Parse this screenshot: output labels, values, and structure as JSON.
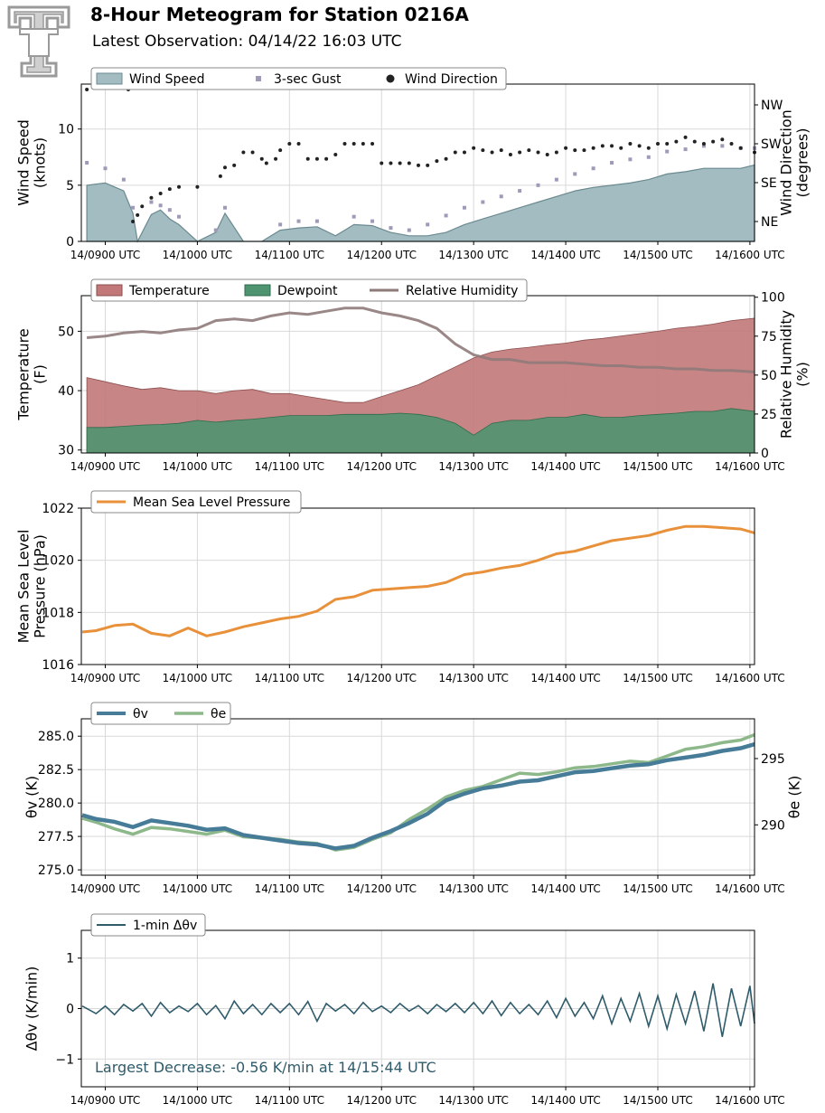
{
  "header": {
    "title": "8-Hour Meteogram for Station 0216A",
    "subtitle": "Latest Observation: 04/14/22 16:03 UTC"
  },
  "x_ticks": [
    "14/0900 UTC",
    "14/1000 UTC",
    "14/1100 UTC",
    "14/1200 UTC",
    "14/1300 UTC",
    "14/1400 UTC",
    "14/1500 UTC",
    "14/1600 UTC"
  ],
  "colors": {
    "wind_speed": "#a3bcc1",
    "wind_speed_edge": "#6b8a90",
    "gust": "#a09ab8",
    "direction": "#222222",
    "temperature": "#c27878",
    "dewpoint": "#4e9470",
    "rh": "#8f7a7a",
    "pressure": "#e8913a",
    "theta_v": "#477c98",
    "theta_e": "#8db88a",
    "delta": "#2f5b6a"
  },
  "chart_data": [
    {
      "type": "area",
      "panel": "wind",
      "ylabel": [
        "Wind Speed",
        "(knots)"
      ],
      "y2label": [
        "Wind Direction",
        "(degrees)"
      ],
      "yticks": [
        "0",
        "5",
        "10"
      ],
      "y2ticks": [
        "NE",
        "SE",
        "SW",
        "NW"
      ],
      "ylim": [
        0,
        14
      ],
      "legend": [
        "Wind Speed",
        "3-sec Gust",
        "Wind Direction"
      ],
      "series": [
        {
          "name": "Wind Speed",
          "unit": "knots",
          "x": [
            8.8,
            9.0,
            9.2,
            9.3,
            9.35,
            9.5,
            9.6,
            9.7,
            9.8,
            10.0,
            10.2,
            10.3,
            10.5,
            10.7,
            10.9,
            11.1,
            11.3,
            11.5,
            11.7,
            11.9,
            12.1,
            12.3,
            12.5,
            12.7,
            12.9,
            13.1,
            13.3,
            13.5,
            13.7,
            13.9,
            14.1,
            14.3,
            14.5,
            14.7,
            14.9,
            15.1,
            15.3,
            15.5,
            15.7,
            15.9,
            16.05
          ],
          "values": [
            5,
            5.2,
            4.5,
            2.5,
            0,
            2.4,
            2.8,
            2.0,
            1.5,
            0,
            0.8,
            2.5,
            0,
            0,
            1,
            1.2,
            1.3,
            0.5,
            1.5,
            1.4,
            0.8,
            0.5,
            0.5,
            0.8,
            1.5,
            2,
            2.5,
            3,
            3.5,
            4,
            4.5,
            4.8,
            5,
            5.2,
            5.5,
            6,
            6.2,
            6.5,
            6.5,
            6.5,
            6.8
          ]
        },
        {
          "name": "3-sec Gust",
          "unit": "knots",
          "x": [
            8.8,
            9.0,
            9.2,
            9.3,
            9.5,
            9.6,
            9.7,
            9.8,
            10.2,
            10.3,
            10.9,
            11.1,
            11.3,
            11.7,
            11.9,
            12.1,
            12.3,
            12.5,
            12.7,
            12.9,
            13.1,
            13.3,
            13.5,
            13.7,
            13.9,
            14.1,
            14.3,
            14.5,
            14.7,
            14.9,
            15.1,
            15.3,
            15.5,
            15.7,
            15.9,
            16.05
          ],
          "values": [
            7,
            6.5,
            5.5,
            3,
            3.5,
            3.2,
            2.8,
            2.2,
            1,
            3,
            1.5,
            1.8,
            1.8,
            2.2,
            1.8,
            1.2,
            1,
            1.5,
            2.3,
            3,
            3.5,
            4,
            4.5,
            5,
            5.5,
            6,
            6.5,
            7,
            7.3,
            7.5,
            8,
            8.2,
            8.5,
            8.5,
            8.3,
            8.3
          ]
        },
        {
          "name": "Wind Direction",
          "unit": "degrees",
          "x": [
            8.8,
            9.25,
            9.3,
            9.35,
            9.4,
            9.5,
            9.6,
            9.7,
            9.8,
            10.0,
            10.25,
            10.3,
            10.4,
            10.5,
            10.6,
            10.7,
            10.75,
            10.85,
            10.9,
            11.0,
            11.1,
            11.2,
            11.3,
            11.4,
            11.5,
            11.6,
            11.7,
            11.8,
            11.9,
            12.0,
            12.1,
            12.2,
            12.3,
            12.4,
            12.5,
            12.6,
            12.7,
            12.8,
            12.9,
            13.0,
            13.1,
            13.2,
            13.3,
            13.4,
            13.5,
            13.6,
            13.7,
            13.8,
            13.9,
            14.0,
            14.1,
            14.2,
            14.3,
            14.4,
            14.5,
            14.6,
            14.7,
            14.8,
            14.9,
            15.0,
            15.1,
            15.2,
            15.3,
            15.4,
            15.5,
            15.6,
            15.7,
            15.8,
            15.9,
            16.05
          ],
          "values": [
            360,
            360,
            45,
            60,
            80,
            100,
            110,
            120,
            125,
            125,
            150,
            170,
            175,
            205,
            205,
            190,
            180,
            190,
            210,
            225,
            225,
            190,
            190,
            190,
            200,
            225,
            225,
            225,
            225,
            180,
            180,
            180,
            180,
            175,
            175,
            185,
            190,
            205,
            205,
            215,
            210,
            205,
            210,
            200,
            205,
            210,
            205,
            200,
            205,
            215,
            210,
            210,
            215,
            220,
            220,
            215,
            225,
            220,
            215,
            225,
            225,
            230,
            240,
            230,
            225,
            230,
            235,
            225,
            215,
            205
          ]
        }
      ]
    },
    {
      "type": "area",
      "panel": "temperature",
      "ylabel": [
        "Temperature",
        "(F)"
      ],
      "y2label": [
        "Relative Humidity",
        "(%)"
      ],
      "yticks": [
        "30",
        "40",
        "50"
      ],
      "y2ticks": [
        "0",
        "25",
        "50",
        "75",
        "100"
      ],
      "ylim": [
        29.5,
        56
      ],
      "y2lim": [
        0,
        101
      ],
      "legend": [
        "Temperature",
        "Dewpoint",
        "Relative Humidity"
      ],
      "x": [
        8.8,
        9.0,
        9.2,
        9.4,
        9.6,
        9.8,
        10.0,
        10.2,
        10.4,
        10.6,
        10.8,
        11.0,
        11.2,
        11.4,
        11.6,
        11.8,
        12.0,
        12.2,
        12.4,
        12.6,
        12.8,
        13.0,
        13.2,
        13.4,
        13.6,
        13.8,
        14.0,
        14.2,
        14.4,
        14.6,
        14.8,
        15.0,
        15.2,
        15.4,
        15.6,
        15.8,
        16.05
      ],
      "series": [
        {
          "name": "Temperature",
          "unit": "F",
          "values": [
            42.2,
            41.5,
            40.8,
            40.2,
            40.5,
            40.0,
            40.0,
            39.5,
            40.0,
            40.2,
            39.5,
            39.5,
            39.0,
            38.5,
            38.0,
            38.0,
            39.0,
            40.0,
            41.0,
            42.5,
            44.0,
            45.5,
            46.5,
            47.0,
            47.3,
            47.7,
            48.0,
            48.5,
            48.8,
            49.2,
            49.6,
            50.0,
            50.5,
            50.8,
            51.2,
            51.8,
            52.2
          ]
        },
        {
          "name": "Dewpoint",
          "unit": "F",
          "values": [
            33.8,
            33.8,
            34.0,
            34.2,
            34.3,
            34.5,
            35.0,
            34.7,
            35.0,
            35.2,
            35.5,
            35.8,
            35.8,
            35.8,
            36.0,
            36.0,
            36.0,
            36.2,
            36.0,
            35.5,
            34.5,
            32.5,
            34.5,
            35.0,
            35.0,
            35.5,
            35.5,
            36.0,
            35.5,
            35.5,
            35.8,
            36.0,
            36.2,
            36.5,
            36.5,
            37.0,
            36.5
          ]
        },
        {
          "name": "Relative Humidity",
          "unit": "%",
          "values": [
            74,
            75,
            77,
            78,
            77,
            79,
            80,
            85,
            86,
            85,
            88,
            90,
            89,
            91,
            93,
            93,
            90,
            88,
            85,
            80,
            70,
            63,
            60,
            60,
            58,
            58,
            58,
            57,
            56,
            56,
            55,
            55,
            54,
            54,
            53,
            53,
            52
          ]
        }
      ]
    },
    {
      "type": "line",
      "panel": "pressure",
      "ylabel": [
        "Mean Sea Level",
        "Pressure (hPa)"
      ],
      "yticks": [
        "1016",
        "1018",
        "1020",
        "1022"
      ],
      "ylim": [
        1016,
        1022
      ],
      "legend": [
        "Mean Sea Level Pressure"
      ],
      "series": [
        {
          "name": "Mean Sea Level Pressure",
          "unit": "hPa",
          "x": [
            8.75,
            8.9,
            9.1,
            9.3,
            9.5,
            9.7,
            9.9,
            10.1,
            10.3,
            10.5,
            10.7,
            10.9,
            11.1,
            11.3,
            11.5,
            11.7,
            11.9,
            12.1,
            12.3,
            12.5,
            12.7,
            12.9,
            13.1,
            13.3,
            13.5,
            13.7,
            13.9,
            14.1,
            14.3,
            14.5,
            14.7,
            14.9,
            15.1,
            15.3,
            15.5,
            15.7,
            15.9,
            16.05
          ],
          "values": [
            1017.25,
            1017.3,
            1017.5,
            1017.55,
            1017.2,
            1017.1,
            1017.4,
            1017.1,
            1017.25,
            1017.45,
            1017.6,
            1017.75,
            1017.85,
            1018.05,
            1018.5,
            1018.6,
            1018.85,
            1018.9,
            1018.95,
            1019.0,
            1019.15,
            1019.45,
            1019.55,
            1019.7,
            1019.8,
            1020.0,
            1020.25,
            1020.35,
            1020.55,
            1020.75,
            1020.85,
            1020.95,
            1021.15,
            1021.3,
            1021.3,
            1021.25,
            1021.2,
            1021.05
          ]
        }
      ]
    },
    {
      "type": "line",
      "panel": "theta",
      "ylabel": [
        "θv (K)"
      ],
      "y2label": [
        "θe (K)"
      ],
      "yticks": [
        "275.0",
        "277.5",
        "280.0",
        "282.5",
        "285.0"
      ],
      "y2ticks": [
        "290",
        "295"
      ],
      "ylim": [
        274.6,
        286.3
      ],
      "y2lim": [
        286.2,
        298.0
      ],
      "legend": [
        "θv",
        "θe"
      ],
      "x": [
        8.75,
        8.9,
        9.1,
        9.3,
        9.5,
        9.7,
        9.9,
        10.1,
        10.3,
        10.5,
        10.7,
        10.9,
        11.1,
        11.3,
        11.5,
        11.7,
        11.9,
        12.1,
        12.3,
        12.5,
        12.7,
        12.9,
        13.1,
        13.3,
        13.5,
        13.7,
        13.9,
        14.1,
        14.3,
        14.5,
        14.7,
        14.9,
        15.1,
        15.3,
        15.5,
        15.7,
        15.9,
        16.05
      ],
      "series": [
        {
          "name": "θv",
          "unit": "K",
          "values": [
            279.1,
            278.8,
            278.6,
            278.2,
            278.7,
            278.5,
            278.3,
            278.0,
            278.1,
            277.6,
            277.4,
            277.2,
            277.0,
            276.9,
            276.6,
            276.8,
            277.4,
            277.9,
            278.5,
            279.2,
            280.2,
            280.7,
            281.1,
            281.3,
            281.6,
            281.7,
            282.0,
            282.3,
            282.4,
            282.6,
            282.8,
            282.9,
            283.2,
            283.4,
            283.6,
            283.9,
            284.1,
            284.4
          ]
        },
        {
          "name": "θe",
          "unit": "K",
          "values": [
            290.5,
            290.2,
            289.7,
            289.3,
            289.8,
            289.7,
            289.5,
            289.3,
            289.6,
            289.1,
            289.0,
            288.9,
            288.7,
            288.6,
            288.1,
            288.3,
            288.9,
            289.4,
            290.4,
            291.2,
            292.1,
            292.6,
            292.9,
            293.4,
            293.9,
            293.8,
            294.0,
            294.3,
            294.4,
            294.6,
            294.8,
            294.7,
            295.2,
            295.7,
            295.9,
            296.2,
            296.4,
            296.8
          ]
        }
      ]
    },
    {
      "type": "line",
      "panel": "delta",
      "ylabel": [
        "Δθv (K/min)"
      ],
      "yticks": [
        "−1",
        "0",
        "1"
      ],
      "ylim": [
        -1.55,
        1.55
      ],
      "legend": [
        "1-min Δθv"
      ],
      "annotation": "Largest Decrease: -0.56 K/min at 14/15:44 UTC",
      "series": [
        {
          "name": "1-min Δθv",
          "unit": "K/min",
          "x": [
            8.75,
            8.9,
            9.0,
            9.1,
            9.2,
            9.3,
            9.4,
            9.5,
            9.6,
            9.7,
            9.8,
            9.9,
            10.0,
            10.1,
            10.2,
            10.3,
            10.4,
            10.5,
            10.6,
            10.7,
            10.8,
            10.9,
            11.0,
            11.1,
            11.2,
            11.3,
            11.4,
            11.5,
            11.6,
            11.7,
            11.8,
            11.9,
            12.0,
            12.1,
            12.2,
            12.3,
            12.4,
            12.5,
            12.6,
            12.7,
            12.8,
            12.9,
            13.0,
            13.1,
            13.2,
            13.3,
            13.4,
            13.5,
            13.6,
            13.7,
            13.8,
            13.9,
            14.0,
            14.1,
            14.2,
            14.3,
            14.4,
            14.5,
            14.6,
            14.7,
            14.8,
            14.9,
            15.0,
            15.1,
            15.2,
            15.3,
            15.4,
            15.5,
            15.6,
            15.7,
            15.8,
            15.9,
            16.0,
            16.05
          ],
          "values": [
            0.05,
            -0.1,
            0.05,
            -0.12,
            0.08,
            -0.05,
            0.1,
            -0.15,
            0.12,
            -0.08,
            0.05,
            -0.06,
            0.1,
            -0.12,
            0.06,
            -0.2,
            0.15,
            -0.1,
            0.08,
            -0.12,
            0.1,
            -0.08,
            0.1,
            -0.12,
            0.14,
            -0.25,
            0.1,
            -0.05,
            0.08,
            -0.1,
            0.12,
            -0.06,
            0.05,
            -0.08,
            0.1,
            -0.05,
            0.06,
            -0.1,
            0.08,
            -0.06,
            0.1,
            -0.08,
            0.12,
            -0.1,
            0.15,
            -0.14,
            0.12,
            -0.1,
            0.08,
            -0.12,
            0.15,
            -0.18,
            0.2,
            -0.15,
            0.12,
            -0.2,
            0.25,
            -0.3,
            0.2,
            -0.25,
            0.3,
            -0.35,
            0.25,
            -0.4,
            0.28,
            -0.3,
            0.35,
            -0.45,
            0.5,
            -0.56,
            0.4,
            -0.35,
            0.45,
            -0.3
          ]
        }
      ]
    }
  ]
}
